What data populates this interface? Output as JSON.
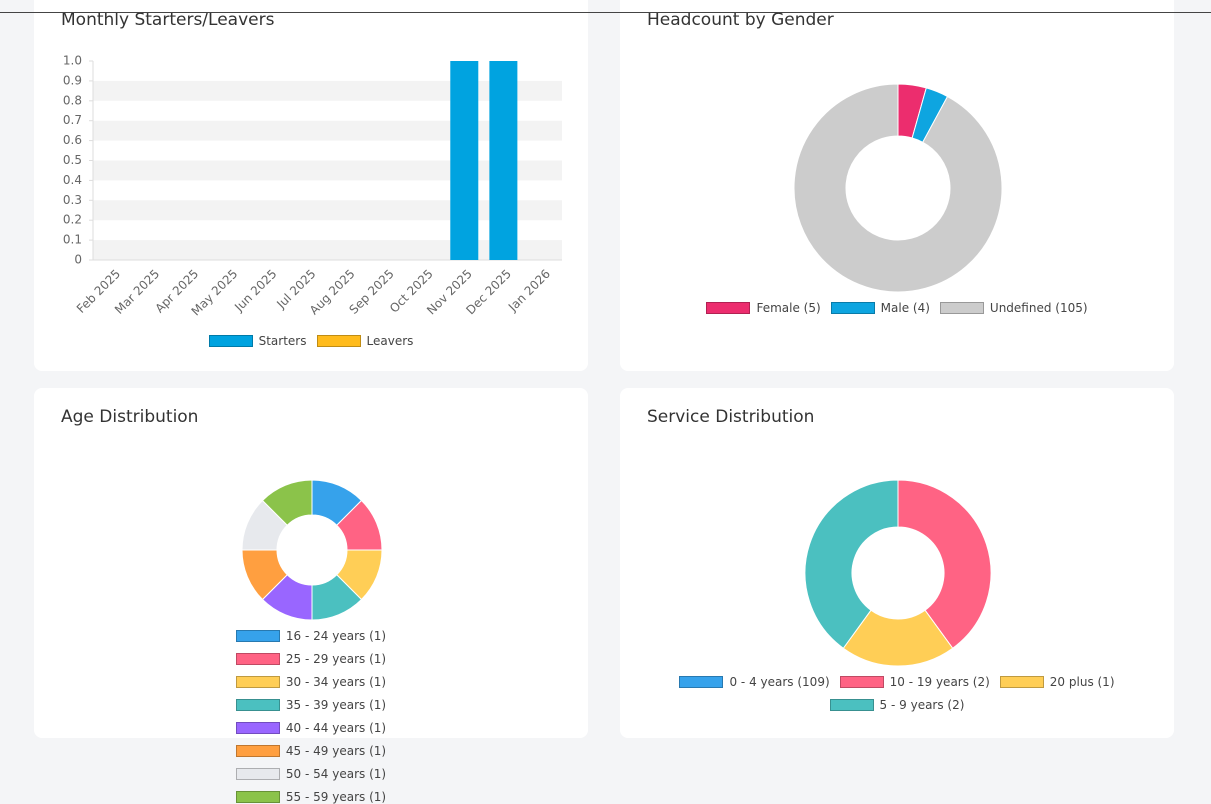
{
  "chart_data": [
    {
      "type": "bar",
      "title": "Monthly Starters/Leavers",
      "stacked": true,
      "grid": true,
      "categories": [
        "Feb 2025",
        "Mar 2025",
        "Apr 2025",
        "May 2025",
        "Jun 2025",
        "Jul 2025",
        "Aug 2025",
        "Sep 2025",
        "Oct 2025",
        "Nov 2025",
        "Dec 2025",
        "Jan 2026"
      ],
      "series": [
        {
          "name": "Starters",
          "color": "#00a3e0",
          "values": [
            0,
            0,
            0,
            0,
            0,
            0,
            0,
            0,
            0,
            1,
            1,
            0
          ]
        },
        {
          "name": "Leavers",
          "color": "#ffbb1c",
          "values": [
            0,
            0,
            0,
            0,
            0,
            0,
            0,
            0,
            0,
            0,
            0,
            0
          ]
        }
      ],
      "ylim": [
        0,
        1
      ],
      "yticks": [
        0,
        0.1,
        0.2,
        0.3,
        0.4,
        0.5,
        0.6,
        0.7,
        0.8,
        0.9,
        {
          "value": 1,
          "label": "1.0"
        }
      ]
    },
    {
      "type": "donut",
      "title": "Headcount by Gender",
      "categories": [
        "Female (5)",
        "Male (4)",
        "Undefined (105)"
      ],
      "values": [
        5,
        4,
        105
      ],
      "colors": [
        "#ec2d6e",
        "#0ea5e0",
        "#cccccc"
      ]
    },
    {
      "type": "donut",
      "title": "Age Distribution",
      "categories": [
        "16 - 24 years (1)",
        "25 - 29 years (1)",
        "30 - 34 years (1)",
        "35 - 39 years (1)",
        "40 - 44 years (1)",
        "45 - 49 years (1)",
        "50 - 54 years (1)",
        "55 - 59 years (1)"
      ],
      "values": [
        1,
        1,
        1,
        1,
        1,
        1,
        1,
        1
      ],
      "colors": [
        "#36a2eb",
        "#ff6384",
        "#ffce56",
        "#4bc0c0",
        "#9966ff",
        "#ff9f40",
        "#e7e9ed",
        "#8bc34a"
      ]
    },
    {
      "type": "donut",
      "title": "Service Distribution",
      "categories": [
        "0 - 4 years (109)",
        "10 - 19 years (2)",
        "20 plus (1)",
        "5 - 9 years (2)"
      ],
      "values": [
        109,
        2,
        1,
        2
      ],
      "visible": [
        false,
        true,
        true,
        true
      ],
      "colors": [
        "#36a2eb",
        "#ff6384",
        "#ffce56",
        "#4bc0c0"
      ]
    }
  ]
}
